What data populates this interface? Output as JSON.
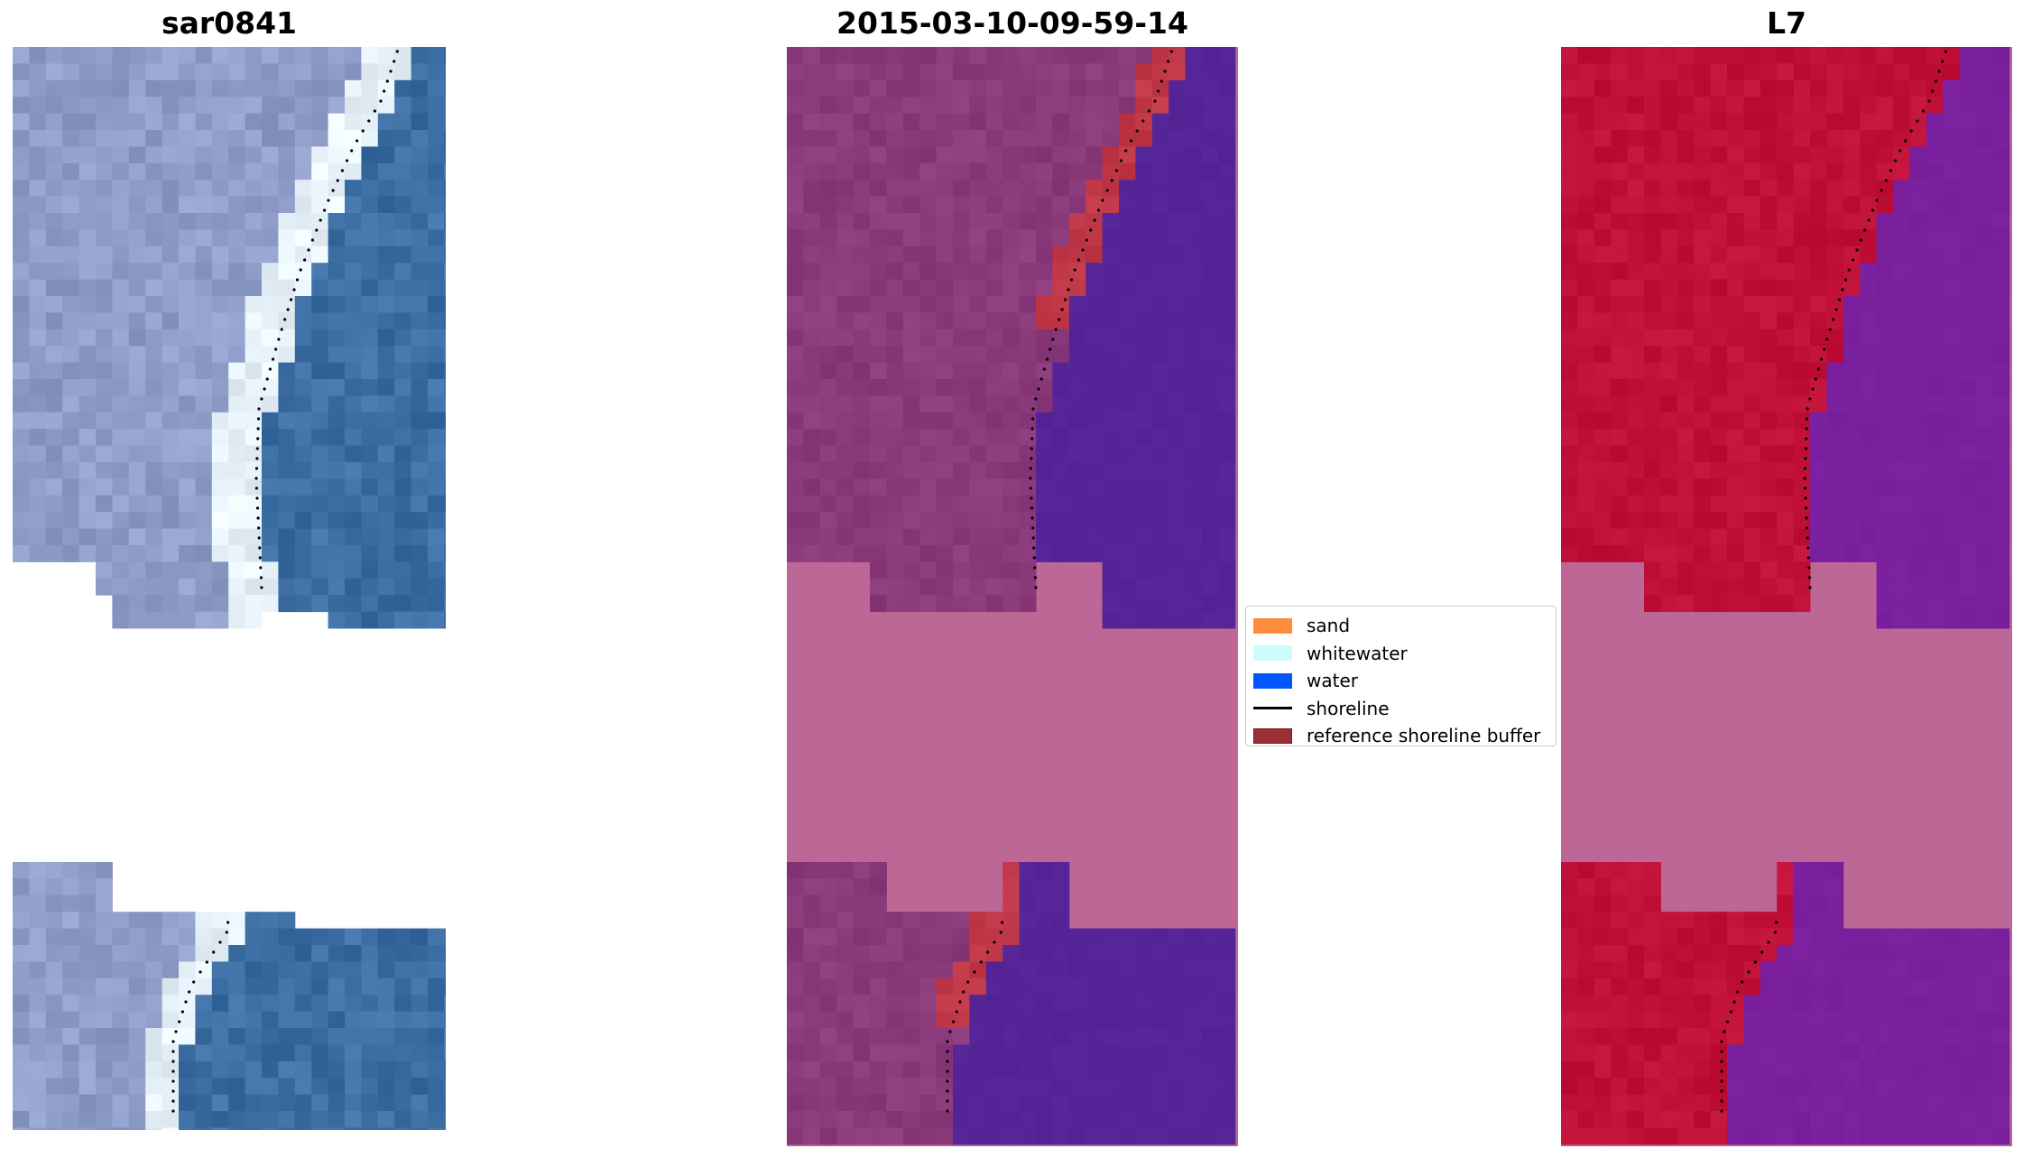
{
  "panels": [
    {
      "title": "sar0841"
    },
    {
      "title": "2015-03-10-09-59-14"
    },
    {
      "title": "L7"
    }
  ],
  "legend": {
    "items": [
      {
        "label": "sand",
        "color": "#ff8c3c",
        "kind": "patch"
      },
      {
        "label": "whitewater",
        "color": "#ccfcfc",
        "kind": "patch"
      },
      {
        "label": "water",
        "color": "#0057ff",
        "kind": "patch"
      },
      {
        "label": "shoreline",
        "color": "#000000",
        "kind": "line"
      },
      {
        "label": "reference shoreline buffer",
        "color": "#9b2d34",
        "kind": "patch-edged"
      }
    ]
  },
  "colors": {
    "rgb_land": "#8e9cc8",
    "rgb_water": "#3c6ea4",
    "rgb_whitewater": "#e8f2fa",
    "class_land": "#8a3a7a",
    "class_water": "#552597",
    "class_buffer": "#c03848",
    "class_nodata": "#bc6796",
    "l7_land": "#c01038",
    "l7_water": "#7a1f9e",
    "l7_nodata": "#bc6796"
  }
}
